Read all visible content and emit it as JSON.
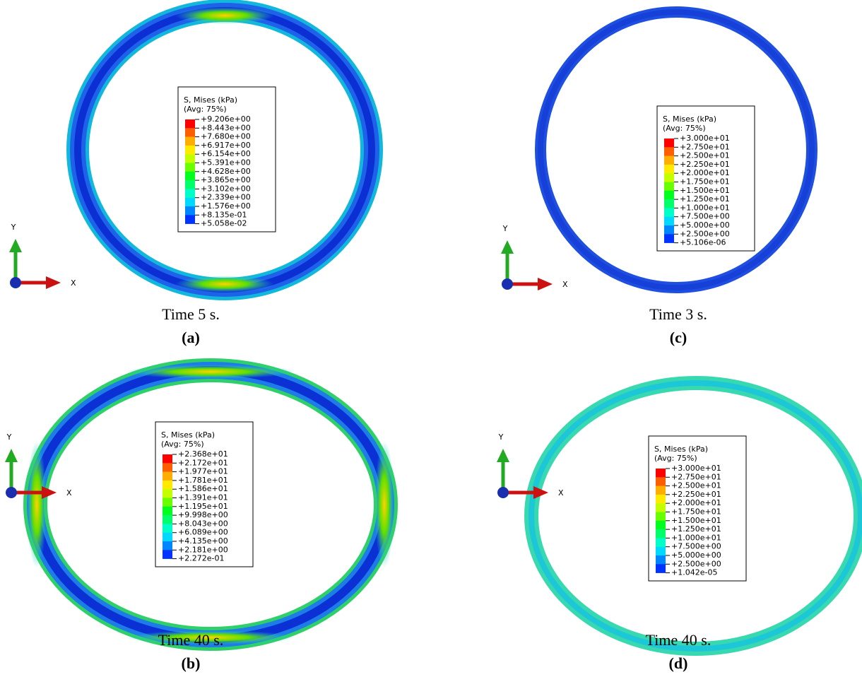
{
  "panels": [
    {
      "label": "(a)",
      "caption": "Time 5 s.",
      "axis": {
        "y": "Y",
        "x": "X"
      },
      "legend": {
        "title": "S, Mises (kPa)",
        "subtitle": "(Avg: 75%)",
        "values": [
          "+9.206e+00",
          "+8.443e+00",
          "+7.680e+00",
          "+6.917e+00",
          "+6.154e+00",
          "+5.391e+00",
          "+4.628e+00",
          "+3.865e+00",
          "+3.102e+00",
          "+2.339e+00",
          "+1.576e+00",
          "+8.135e-01",
          "+5.058e-02"
        ]
      }
    },
    {
      "label": "(b)",
      "caption": "Time 40 s.",
      "axis": {
        "y": "Y",
        "x": "X"
      },
      "legend": {
        "title": "S, Mises (kPa)",
        "subtitle": "(Avg: 75%)",
        "values": [
          "+2.368e+01",
          "+2.172e+01",
          "+1.977e+01",
          "+1.781e+01",
          "+1.586e+01",
          "+1.391e+01",
          "+1.195e+01",
          "+9.998e+00",
          "+8.043e+00",
          "+6.089e+00",
          "+4.135e+00",
          "+2.181e+00",
          "+2.272e-01"
        ]
      }
    },
    {
      "label": "(c)",
      "caption": "Time 3 s.",
      "axis": {
        "y": "Y",
        "x": "X"
      },
      "legend": {
        "title": "S, Mises (kPa)",
        "subtitle": "(Avg: 75%)",
        "values": [
          "+3.000e+01",
          "+2.750e+01",
          "+2.500e+01",
          "+2.250e+01",
          "+2.000e+01",
          "+1.750e+01",
          "+1.500e+01",
          "+1.250e+01",
          "+1.000e+01",
          "+7.500e+00",
          "+5.000e+00",
          "+2.500e+00",
          "+5.106e-06"
        ]
      }
    },
    {
      "label": "(d)",
      "caption": "Time 40 s.",
      "axis": {
        "y": "Y",
        "x": "X"
      },
      "legend": {
        "title": "S, Mises (kPa)",
        "subtitle": "(Avg: 75%)",
        "values": [
          "+3.000e+01",
          "+2.750e+01",
          "+2.500e+01",
          "+2.250e+01",
          "+2.000e+01",
          "+1.750e+01",
          "+1.500e+01",
          "+1.250e+01",
          "+1.000e+01",
          "+7.500e+00",
          "+5.000e+00",
          "+2.500e+00",
          "+1.042e-05"
        ]
      }
    }
  ]
}
